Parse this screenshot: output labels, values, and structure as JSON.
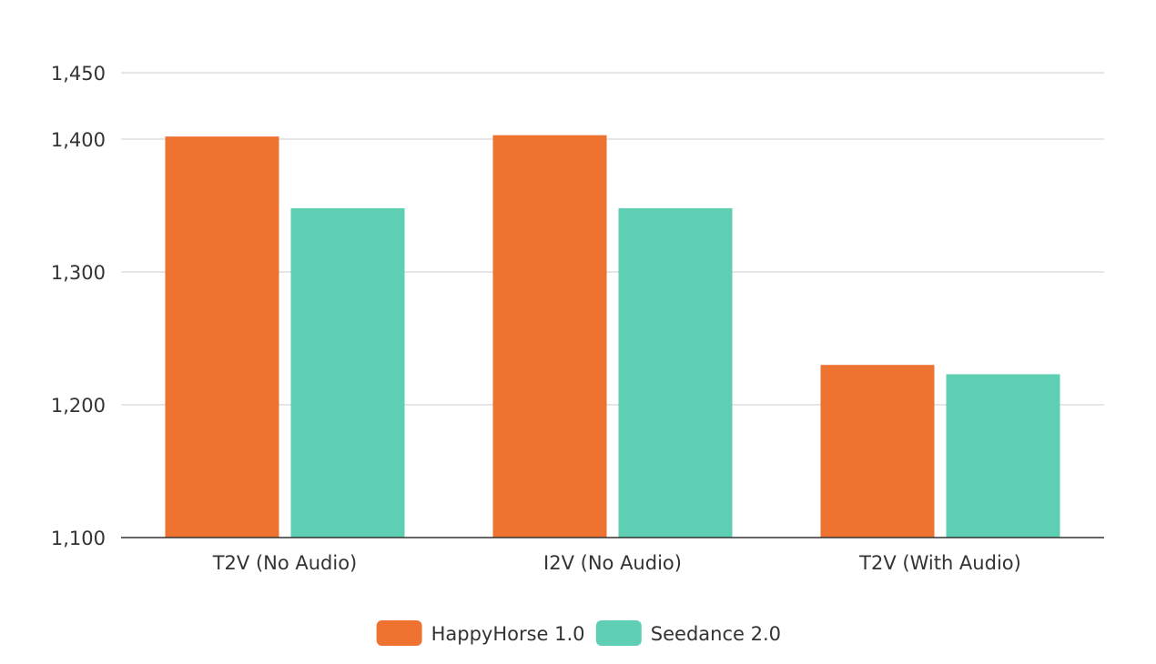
{
  "chart_data": {
    "type": "bar",
    "title": "",
    "xlabel": "",
    "ylabel": "",
    "categories": [
      "T2V (No Audio)",
      "I2V (No Audio)",
      "T2V (With Audio)"
    ],
    "series": [
      {
        "name": "HappyHorse 1.0",
        "color": "#ee7330",
        "values": [
          1402,
          1403,
          1230
        ]
      },
      {
        "name": "Seedance 2.0",
        "color": "#5fcfb3",
        "values": [
          1348,
          1348,
          1223
        ]
      }
    ],
    "ylim": [
      1100,
      1450
    ],
    "yticks": [
      1100,
      1200,
      1300,
      1400,
      1450
    ],
    "ytick_labels": [
      "1,100",
      "1,200",
      "1,300",
      "1,400",
      "1,450"
    ],
    "grid": true,
    "legend_position": "bottom-center",
    "gridline_color": "#dddddd",
    "axis_color": "#333333"
  }
}
